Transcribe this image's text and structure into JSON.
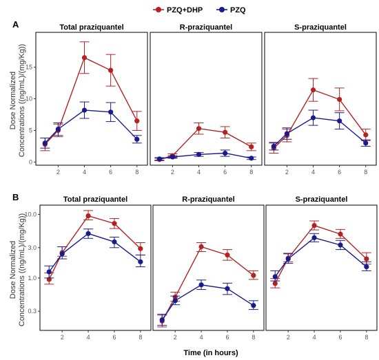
{
  "legend": {
    "entries": [
      {
        "label": "PZQ+DHP",
        "color": "#b22222"
      },
      {
        "label": "PZQ",
        "color": "#1a1a8c"
      }
    ]
  },
  "figure": {
    "ylabel_line1": "Dose Normalized",
    "ylabel_line2": "Concentrations ((ng/mL)/(mg/Kg))",
    "xlabel": "Time (in hours)"
  },
  "chart_data": [
    {
      "panel": "A",
      "type": "line",
      "yscale": "linear",
      "ylim": [
        -0.5,
        20.5
      ],
      "yticks": [
        0,
        5,
        10,
        15
      ],
      "ytick_labels": [
        "0",
        "5",
        "10",
        "15"
      ],
      "xlim": [
        0.3,
        8.8
      ],
      "xticks": [
        2,
        4,
        6,
        8
      ],
      "facets": [
        {
          "title": "Total praziquantel",
          "series": [
            {
              "name": "PZQ+DHP",
              "x": [
                1,
                2,
                4,
                6,
                8
              ],
              "y": [
                2.8,
                5.0,
                16.5,
                14.5,
                6.5
              ],
              "err": [
                1.0,
                1.0,
                2.5,
                2.5,
                1.5
              ]
            },
            {
              "name": "PZQ",
              "x": [
                1,
                2,
                4,
                6,
                8
              ],
              "y": [
                3.0,
                5.2,
                8.2,
                7.9,
                3.6
              ],
              "err": [
                0.8,
                1.0,
                1.3,
                1.5,
                0.6
              ]
            }
          ]
        },
        {
          "title": "R-praziquantel",
          "series": [
            {
              "name": "PZQ+DHP",
              "x": [
                1,
                2,
                4,
                6,
                8
              ],
              "y": [
                0.4,
                1.0,
                5.3,
                4.7,
                2.4
              ],
              "err": [
                0.2,
                0.3,
                0.9,
                0.9,
                0.6
              ]
            },
            {
              "name": "PZQ",
              "x": [
                1,
                2,
                4,
                6,
                8
              ],
              "y": [
                0.5,
                0.8,
                1.2,
                1.4,
                0.6
              ],
              "err": [
                0.2,
                0.2,
                0.3,
                0.5,
                0.2
              ]
            }
          ]
        },
        {
          "title": "S-praziquantel",
          "series": [
            {
              "name": "PZQ+DHP",
              "x": [
                1,
                2,
                4,
                6,
                8
              ],
              "y": [
                2.2,
                4.2,
                11.4,
                9.9,
                4.3
              ],
              "err": [
                0.8,
                1.0,
                1.8,
                1.8,
                0.9
              ]
            },
            {
              "name": "PZQ",
              "x": [
                1,
                2,
                4,
                6,
                8
              ],
              "y": [
                2.5,
                4.5,
                7.0,
                6.5,
                3.0
              ],
              "err": [
                0.6,
                0.9,
                1.2,
                1.3,
                0.5
              ]
            }
          ]
        }
      ]
    },
    {
      "panel": "B",
      "type": "line",
      "yscale": "log",
      "ylim": [
        0.15,
        14
      ],
      "yticks": [
        0.3,
        1.0,
        3.0,
        10.0
      ],
      "ytick_labels": [
        "0.3",
        "1.0",
        "3.0",
        "10.0"
      ],
      "xlim": [
        0.3,
        8.8
      ],
      "xticks": [
        2,
        4,
        6,
        8
      ],
      "facets": [
        {
          "title": "Total praziquantel",
          "series": [
            {
              "name": "PZQ+DHP",
              "x": [
                1,
                2,
                4,
                6,
                8
              ],
              "y": [
                0.95,
                2.5,
                9.5,
                7.2,
                2.9
              ],
              "lo": [
                0.8,
                2.2,
                8.2,
                6.0,
                2.3
              ],
              "hi": [
                1.2,
                3.1,
                11.5,
                8.6,
                3.6
              ]
            },
            {
              "name": "PZQ",
              "x": [
                1,
                2,
                4,
                6,
                8
              ],
              "y": [
                1.25,
                2.4,
                5.0,
                3.7,
                1.8
              ],
              "lo": [
                1.0,
                2.0,
                4.2,
                3.0,
                1.5
              ],
              "hi": [
                1.55,
                3.1,
                5.9,
                4.4,
                2.3
              ]
            }
          ]
        },
        {
          "title": "R-praziquantel",
          "series": [
            {
              "name": "PZQ+DHP",
              "x": [
                1,
                2,
                4,
                6,
                8
              ],
              "y": [
                0.21,
                0.5,
                3.1,
                2.3,
                1.1
              ],
              "lo": [
                0.17,
                0.43,
                2.6,
                1.9,
                0.95
              ],
              "hi": [
                0.26,
                0.6,
                3.6,
                2.8,
                1.3
              ]
            },
            {
              "name": "PZQ",
              "x": [
                1,
                2,
                4,
                6,
                8
              ],
              "y": [
                0.22,
                0.44,
                0.78,
                0.68,
                0.37
              ],
              "lo": [
                0.18,
                0.38,
                0.66,
                0.55,
                0.32
              ],
              "hi": [
                0.27,
                0.52,
                0.93,
                0.83,
                0.44
              ]
            }
          ]
        },
        {
          "title": "S-praziquantel",
          "series": [
            {
              "name": "PZQ+DHP",
              "x": [
                1,
                2,
                4,
                6,
                8
              ],
              "y": [
                0.82,
                2.05,
                6.7,
                4.9,
                2.0
              ],
              "lo": [
                0.7,
                1.8,
                5.7,
                4.2,
                1.65
              ],
              "hi": [
                0.98,
                2.45,
                7.9,
                5.8,
                2.5
              ]
            },
            {
              "name": "PZQ",
              "x": [
                1,
                2,
                4,
                6,
                8
              ],
              "y": [
                1.05,
                2.0,
                4.3,
                3.3,
                1.5
              ],
              "lo": [
                0.9,
                1.7,
                3.7,
                2.8,
                1.3
              ],
              "hi": [
                1.3,
                2.4,
                5.0,
                3.9,
                1.8
              ]
            }
          ]
        }
      ]
    }
  ]
}
